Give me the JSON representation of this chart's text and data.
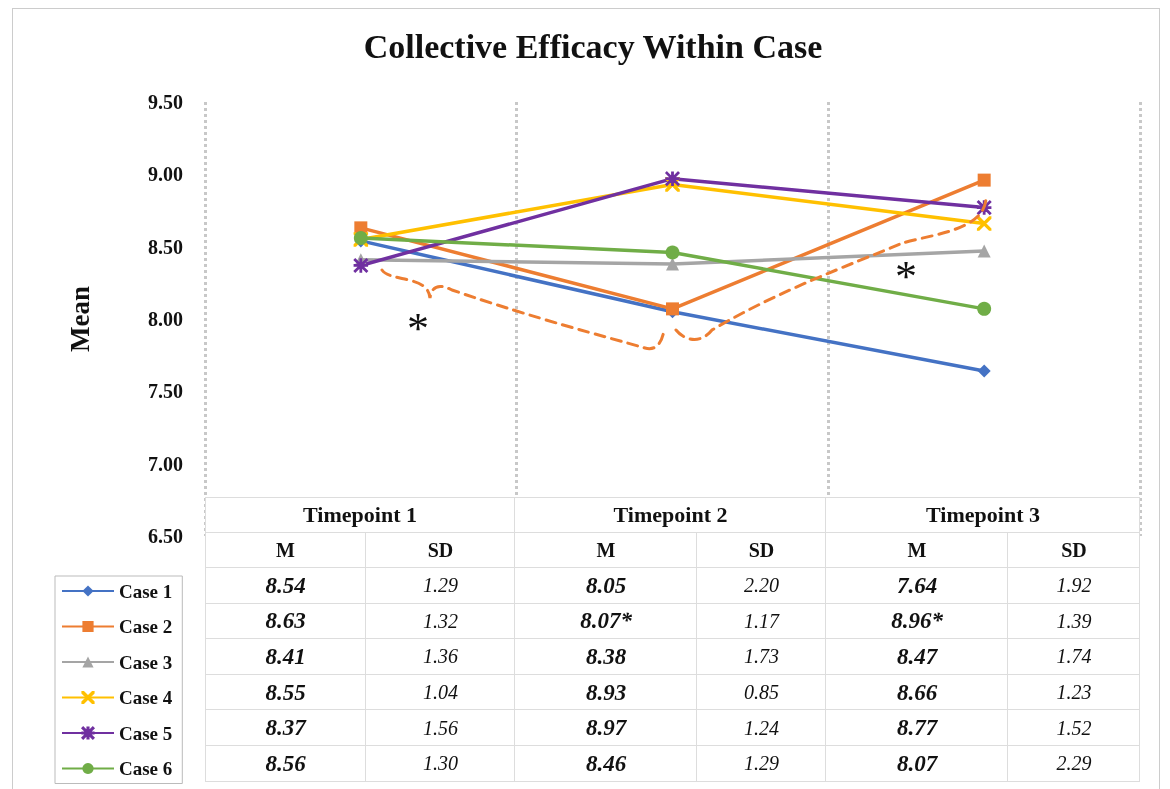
{
  "chart_data": {
    "type": "line",
    "title": "Collective Efficacy Within Case",
    "ylabel": "Mean",
    "categories": [
      "Timepoint 1",
      "Timepoint 2",
      "Timepoint 3"
    ],
    "ylim": [
      6.5,
      9.5
    ],
    "yticks": [
      {
        "value": 6.5,
        "label": "6.50"
      },
      {
        "value": 7,
        "label": "7.00"
      },
      {
        "value": 7.5,
        "label": "7.50"
      },
      {
        "value": 8,
        "label": "8.00"
      },
      {
        "value": 8.5,
        "label": "8.50"
      },
      {
        "value": 9,
        "label": "9.00"
      },
      {
        "value": 9.5,
        "label": "9.50"
      }
    ],
    "grid": "x",
    "legend": "bottom left",
    "series": [
      {
        "name": "Case 1",
        "color": "#4472c4",
        "marker": "diamond",
        "values": [
          8.54,
          8.05,
          7.64
        ],
        "value_labels": [
          "8.54",
          "8.05",
          "7.64"
        ]
      },
      {
        "name": "Case 2",
        "color": "#ed7d31",
        "marker": "square",
        "values": [
          8.63,
          8.07,
          8.96
        ],
        "value_labels": [
          "8.63",
          "8.07*",
          "8.96*"
        ]
      },
      {
        "name": "Case 3",
        "color": "#a5a5a5",
        "marker": "triangle",
        "values": [
          8.41,
          8.38,
          8.47
        ],
        "value_labels": [
          "8.41",
          "8.38",
          "8.47"
        ]
      },
      {
        "name": "Case 4",
        "color": "#ffc000",
        "marker": "cross",
        "values": [
          8.55,
          8.93,
          8.66
        ],
        "value_labels": [
          "8.55",
          "8.93",
          "8.66"
        ]
      },
      {
        "name": "Case 5",
        "color": "#7030a0",
        "marker": "star",
        "values": [
          8.37,
          8.97,
          8.77
        ],
        "value_labels": [
          "8.37",
          "8.97",
          "8.77"
        ]
      },
      {
        "name": "Case 6",
        "color": "#70ad47",
        "marker": "circle",
        "values": [
          8.56,
          8.46,
          8.07
        ],
        "value_labels": [
          "8.56",
          "8.46",
          "8.07"
        ]
      }
    ],
    "annotations": [
      "*",
      "*",
      "M",
      "SD",
      "1.29",
      "2.20",
      "1.92",
      "1.32",
      "1.17",
      "1.39",
      "1.36",
      "1.73",
      "1.74",
      "1.04",
      "0.85",
      "1.23",
      "1.56",
      "1.24",
      "1.52",
      "1.30",
      "1.29",
      "2.29"
    ]
  }
}
